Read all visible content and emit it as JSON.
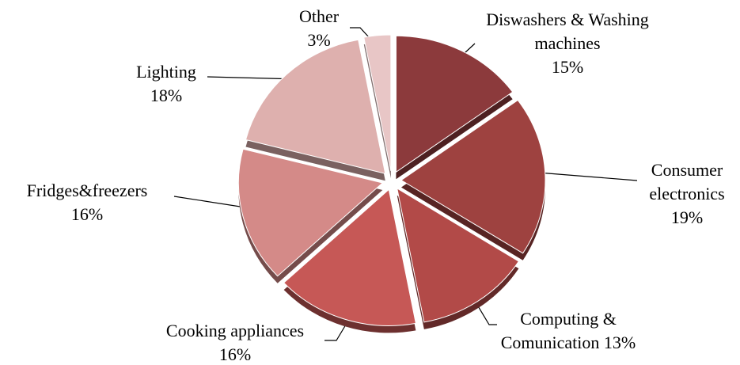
{
  "chart_data": {
    "type": "pie",
    "categories": [
      "Diswashers & Washing machines",
      "Consumer electronics",
      "Computing & Comunication",
      "Cooking appliances",
      "Fridges&freezers",
      "Lighting",
      "Other"
    ],
    "values": [
      15,
      19,
      13,
      16,
      16,
      18,
      3
    ],
    "value_labels": [
      "15%",
      "19%",
      "13%",
      "16%",
      "16%",
      "18%",
      "3%"
    ],
    "colors": [
      "#8c3a3c",
      "#9e4240",
      "#b24a48",
      "#c65856",
      "#d48a88",
      "#deb0ae",
      "#e8c6c6"
    ]
  }
}
